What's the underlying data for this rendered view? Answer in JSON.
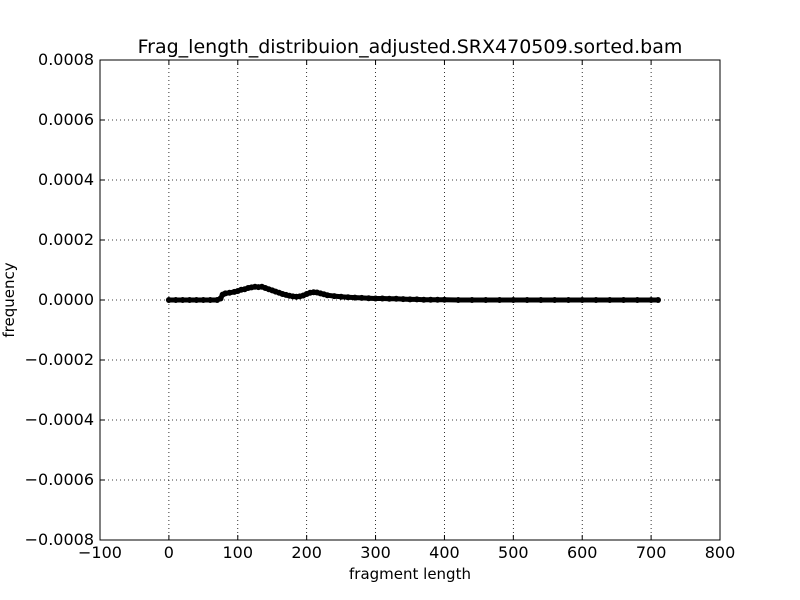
{
  "chart_data": {
    "type": "scatter",
    "title": "Frag_length_distribuion_adjusted.SRX470509.sorted.bam",
    "xlabel": "fragment length",
    "ylabel": "frequency",
    "xlim": [
      -100,
      800
    ],
    "ylim": [
      -0.0008,
      0.0008
    ],
    "xticks": [
      -100,
      0,
      100,
      200,
      300,
      400,
      500,
      600,
      700,
      800
    ],
    "xtick_labels": [
      "−100",
      "0",
      "100",
      "200",
      "300",
      "400",
      "500",
      "600",
      "700",
      "800"
    ],
    "yticks": [
      0.0008,
      0.0006,
      0.0004,
      0.0002,
      0.0,
      -0.0002,
      -0.0004,
      -0.0006,
      -0.0008
    ],
    "ytick_labels": [
      "0.0008",
      "0.0006",
      "0.0004",
      "0.0002",
      "0.0000",
      "−0.0002",
      "−0.0004",
      "−0.0006",
      "−0.0008"
    ],
    "grid": true,
    "series_color": "#000000",
    "series": [
      {
        "x": [
          0,
          10,
          20,
          30,
          40,
          50,
          60,
          70,
          75,
          78,
          82,
          88,
          95,
          100,
          105,
          110,
          115,
          120,
          125,
          130,
          135,
          140,
          145,
          150,
          155,
          160,
          165,
          170,
          175,
          180,
          185,
          190,
          195,
          200,
          205,
          210,
          215,
          220,
          225,
          230,
          240,
          250,
          260,
          270,
          280,
          290,
          300,
          310,
          320,
          330,
          340,
          350,
          360,
          370,
          380,
          390,
          400,
          420,
          440,
          460,
          480,
          500,
          520,
          540,
          560,
          580,
          600,
          620,
          640,
          660,
          680,
          700,
          710
        ],
        "y": [
          0,
          0,
          0,
          0,
          0,
          0,
          0,
          0,
          5e-06,
          1.8e-05,
          2.2e-05,
          2.4e-05,
          2.7e-05,
          3e-05,
          3.4e-05,
          3.6e-05,
          4e-05,
          4.2e-05,
          4.4e-05,
          4.3e-05,
          4.4e-05,
          4e-05,
          3.6e-05,
          3.2e-05,
          2.8e-05,
          2.4e-05,
          2e-05,
          1.7e-05,
          1.4e-05,
          1.2e-05,
          1.1e-05,
          1.2e-05,
          1.5e-05,
          2e-05,
          2.4e-05,
          2.6e-05,
          2.5e-05,
          2.2e-05,
          1.9e-05,
          1.6e-05,
          1.3e-05,
          1.1e-05,
          9e-06,
          8e-06,
          7e-06,
          6e-06,
          5e-06,
          5e-06,
          4e-06,
          4e-06,
          3e-06,
          2e-06,
          2e-06,
          1e-06,
          1e-06,
          1e-06,
          1e-06,
          0,
          0,
          0,
          0,
          0,
          0,
          0,
          0,
          0,
          0,
          0,
          0,
          0,
          0,
          0,
          0
        ]
      }
    ]
  }
}
